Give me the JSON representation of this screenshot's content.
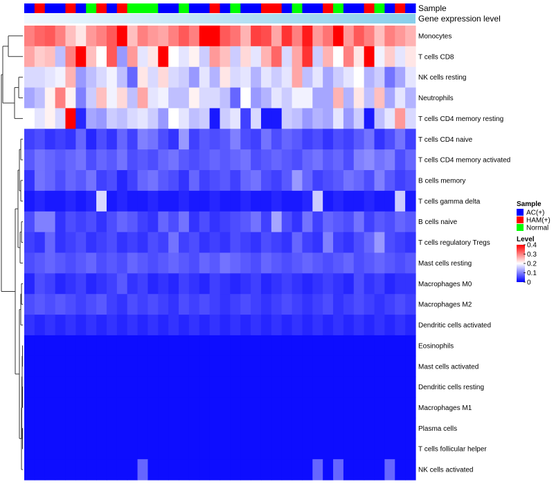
{
  "chart_data": {
    "type": "heatmap",
    "title": "",
    "annotation_rows": {
      "sample": "Sample",
      "gene_expression_level": "Gene expression level"
    },
    "legend": {
      "sample_title": "Sample",
      "sample_items": [
        {
          "label": "AC(+)",
          "color": "#0000ff"
        },
        {
          "label": "HAM(+)",
          "color": "#ff0000"
        },
        {
          "label": "Normal",
          "color": "#00ff00"
        }
      ],
      "level_title": "Level",
      "level_ticks": [
        "0.4",
        "0.3",
        "0.2",
        "0.1",
        "0"
      ],
      "level_range": [
        0,
        0.4
      ]
    },
    "sample_groups": [
      "AC(+)",
      "HAM(+)",
      "AC(+)",
      "AC(+)",
      "HAM(+)",
      "AC(+)",
      "Normal",
      "HAM(+)",
      "AC(+)",
      "HAM(+)",
      "Normal",
      "Normal",
      "Normal",
      "AC(+)",
      "AC(+)",
      "Normal",
      "AC(+)",
      "AC(+)",
      "HAM(+)",
      "AC(+)",
      "Normal",
      "AC(+)",
      "AC(+)",
      "HAM(+)",
      "HAM(+)",
      "AC(+)",
      "Normal",
      "AC(+)",
      "AC(+)",
      "HAM(+)",
      "Normal",
      "AC(+)",
      "AC(+)",
      "HAM(+)",
      "Normal",
      "AC(+)",
      "HAM(+)",
      "AC(+)"
    ],
    "colors": {
      "low": "#0000ff",
      "mid": "#ffffff",
      "high": "#ff0000",
      "gene_bar": "#87ceeb",
      "gene_bar_light": "#f0f8ff",
      "dendrogram": "#333333"
    },
    "rows": [
      {
        "name": "Monocytes",
        "values": [
          0.3,
          0.32,
          0.33,
          0.3,
          0.25,
          0.22,
          0.28,
          0.3,
          0.33,
          0.4,
          0.25,
          0.3,
          0.28,
          0.27,
          0.3,
          0.33,
          0.3,
          0.4,
          0.4,
          0.33,
          0.31,
          0.26,
          0.35,
          0.34,
          0.27,
          0.36,
          0.3,
          0.38,
          0.28,
          0.31,
          0.4,
          0.28,
          0.33,
          0.3,
          0.25,
          0.3,
          0.28,
          0.26
        ]
      },
      {
        "name": "T cells CD8",
        "values": [
          0.27,
          0.24,
          0.25,
          0.15,
          0.3,
          0.4,
          0.25,
          0.2,
          0.33,
          0.12,
          0.28,
          0.18,
          0.22,
          0.4,
          0.2,
          0.18,
          0.21,
          0.16,
          0.28,
          0.25,
          0.16,
          0.23,
          0.18,
          0.26,
          0.32,
          0.17,
          0.27,
          0.36,
          0.16,
          0.26,
          0.2,
          0.3,
          0.22,
          0.4,
          0.19,
          0.24,
          0.18,
          0.22
        ]
      },
      {
        "name": "NK cells resting",
        "values": [
          0.17,
          0.17,
          0.18,
          0.19,
          0.26,
          0.12,
          0.15,
          0.17,
          0.19,
          0.15,
          0.08,
          0.22,
          0.17,
          0.23,
          0.17,
          0.16,
          0.12,
          0.18,
          0.14,
          0.22,
          0.17,
          0.18,
          0.14,
          0.18,
          0.16,
          0.18,
          0.27,
          0.15,
          0.18,
          0.13,
          0.16,
          0.18,
          0.2,
          0.14,
          0.16,
          0.09,
          0.13,
          0.18
        ]
      },
      {
        "name": "Neutrophils",
        "values": [
          0.13,
          0.15,
          0.21,
          0.3,
          0.21,
          0.1,
          0.16,
          0.25,
          0.19,
          0.23,
          0.15,
          0.27,
          0.18,
          0.19,
          0.15,
          0.15,
          0.21,
          0.17,
          0.17,
          0.15,
          0.08,
          0.2,
          0.12,
          0.14,
          0.18,
          0.16,
          0.19,
          0.19,
          0.13,
          0.13,
          0.26,
          0.14,
          0.22,
          0.15,
          0.25,
          0.13,
          0.18,
          0.14
        ]
      },
      {
        "name": "T cells CD4 memory resting",
        "values": [
          0.2,
          0.18,
          0.21,
          0.17,
          0.4,
          0.03,
          0.13,
          0.12,
          0.16,
          0.15,
          0.17,
          0.18,
          0.16,
          0.12,
          0.2,
          0.18,
          0.15,
          0.16,
          0.02,
          0.16,
          0.18,
          0.05,
          0.17,
          0.02,
          0.02,
          0.16,
          0.15,
          0.12,
          0.14,
          0.13,
          0.18,
          0.12,
          0.16,
          0.02,
          0.15,
          0.18,
          0.28,
          0.17
        ]
      },
      {
        "name": "T cells CD4 naive",
        "values": [
          0.05,
          0.06,
          0.04,
          0.05,
          0.04,
          0.08,
          0.03,
          0.06,
          0.04,
          0.08,
          0.05,
          0.1,
          0.09,
          0.06,
          0.04,
          0.12,
          0.05,
          0.07,
          0.06,
          0.07,
          0.1,
          0.06,
          0.05,
          0.09,
          0.06,
          0.08,
          0.07,
          0.05,
          0.06,
          0.04,
          0.06,
          0.05,
          0.07,
          0.09,
          0.04,
          0.06,
          0.09,
          0.05
        ]
      },
      {
        "name": "T cells CD4 memory activated",
        "values": [
          0.07,
          0.09,
          0.08,
          0.07,
          0.08,
          0.09,
          0.06,
          0.08,
          0.07,
          0.09,
          0.06,
          0.07,
          0.06,
          0.08,
          0.09,
          0.07,
          0.06,
          0.07,
          0.08,
          0.07,
          0.08,
          0.09,
          0.06,
          0.07,
          0.08,
          0.07,
          0.06,
          0.08,
          0.09,
          0.07,
          0.08,
          0.06,
          0.1,
          0.11,
          0.09,
          0.1,
          0.06,
          0.08
        ]
      },
      {
        "name": "B cells memory",
        "values": [
          0.04,
          0.09,
          0.08,
          0.06,
          0.08,
          0.07,
          0.09,
          0.05,
          0.06,
          0.03,
          0.05,
          0.08,
          0.09,
          0.07,
          0.06,
          0.04,
          0.08,
          0.05,
          0.06,
          0.07,
          0.05,
          0.08,
          0.09,
          0.06,
          0.05,
          0.07,
          0.12,
          0.08,
          0.05,
          0.06,
          0.07,
          0.09,
          0.08,
          0.06,
          0.1,
          0.07,
          0.05,
          0.06
        ]
      },
      {
        "name": "T cells gamma delta",
        "values": [
          0.02,
          0.03,
          0.02,
          0.02,
          0.03,
          0.02,
          0.03,
          0.17,
          0.02,
          0.03,
          0.02,
          0.02,
          0.03,
          0.02,
          0.02,
          0.03,
          0.02,
          0.02,
          0.03,
          0.02,
          0.02,
          0.03,
          0.02,
          0.02,
          0.03,
          0.02,
          0.02,
          0.03,
          0.16,
          0.02,
          0.03,
          0.02,
          0.02,
          0.03,
          0.02,
          0.02,
          0.16,
          0.02
        ]
      },
      {
        "name": "B cells naive",
        "values": [
          0.06,
          0.1,
          0.1,
          0.04,
          0.06,
          0.05,
          0.06,
          0.04,
          0.06,
          0.08,
          0.07,
          0.05,
          0.04,
          0.08,
          0.06,
          0.09,
          0.04,
          0.06,
          0.04,
          0.05,
          0.06,
          0.07,
          0.09,
          0.05,
          0.13,
          0.06,
          0.04,
          0.09,
          0.05,
          0.08,
          0.07,
          0.06,
          0.09,
          0.05,
          0.07,
          0.06,
          0.08,
          0.07
        ]
      },
      {
        "name": "T cells regulatory  Tregs",
        "values": [
          0.05,
          0.04,
          0.08,
          0.04,
          0.05,
          0.06,
          0.04,
          0.05,
          0.06,
          0.04,
          0.05,
          0.04,
          0.06,
          0.05,
          0.09,
          0.05,
          0.06,
          0.04,
          0.05,
          0.04,
          0.06,
          0.05,
          0.04,
          0.06,
          0.05,
          0.04,
          0.08,
          0.05,
          0.04,
          0.1,
          0.05,
          0.04,
          0.06,
          0.08,
          0.12,
          0.06,
          0.05,
          0.04
        ]
      },
      {
        "name": "Mast cells resting",
        "values": [
          0.06,
          0.07,
          0.08,
          0.07,
          0.06,
          0.07,
          0.08,
          0.06,
          0.07,
          0.06,
          0.08,
          0.07,
          0.06,
          0.07,
          0.08,
          0.07,
          0.06,
          0.08,
          0.07,
          0.09,
          0.08,
          0.07,
          0.06,
          0.08,
          0.07,
          0.06,
          0.07,
          0.08,
          0.07,
          0.06,
          0.07,
          0.08,
          0.06,
          0.07,
          0.08,
          0.07,
          0.06,
          0.07
        ]
      },
      {
        "name": "Macrophages M0",
        "values": [
          0.03,
          0.06,
          0.05,
          0.03,
          0.04,
          0.05,
          0.03,
          0.04,
          0.05,
          0.07,
          0.04,
          0.05,
          0.03,
          0.04,
          0.03,
          0.05,
          0.04,
          0.03,
          0.05,
          0.04,
          0.03,
          0.04,
          0.05,
          0.03,
          0.04,
          0.05,
          0.04,
          0.03,
          0.04,
          0.05,
          0.04,
          0.03,
          0.06,
          0.04,
          0.05,
          0.03,
          0.04,
          0.04
        ]
      },
      {
        "name": "Macrophages M2",
        "values": [
          0.06,
          0.07,
          0.06,
          0.07,
          0.06,
          0.05,
          0.06,
          0.07,
          0.05,
          0.04,
          0.06,
          0.05,
          0.06,
          0.05,
          0.04,
          0.06,
          0.05,
          0.06,
          0.05,
          0.04,
          0.05,
          0.06,
          0.05,
          0.04,
          0.05,
          0.06,
          0.05,
          0.04,
          0.05,
          0.06,
          0.04,
          0.05,
          0.06,
          0.05,
          0.04,
          0.05,
          0.06,
          0.05
        ]
      },
      {
        "name": "Dendritic cells activated",
        "values": [
          0.04,
          0.03,
          0.04,
          0.03,
          0.04,
          0.03,
          0.04,
          0.03,
          0.04,
          0.03,
          0.04,
          0.03,
          0.04,
          0.03,
          0.04,
          0.03,
          0.04,
          0.03,
          0.04,
          0.03,
          0.04,
          0.03,
          0.04,
          0.03,
          0.04,
          0.03,
          0.04,
          0.03,
          0.04,
          0.03,
          0.04,
          0.03,
          0.04,
          0.03,
          0.04,
          0.03,
          0.04,
          0.03
        ]
      },
      {
        "name": "Eosinophils",
        "values": [
          0.01,
          0.01,
          0.01,
          0.01,
          0.01,
          0.01,
          0.01,
          0.01,
          0.01,
          0.01,
          0.01,
          0.01,
          0.01,
          0.01,
          0.01,
          0.01,
          0.01,
          0.01,
          0.01,
          0.01,
          0.01,
          0.01,
          0.01,
          0.01,
          0.01,
          0.01,
          0.01,
          0.01,
          0.01,
          0.01,
          0.01,
          0.01,
          0.01,
          0.01,
          0.01,
          0.01,
          0.01,
          0.01
        ]
      },
      {
        "name": "Mast cells activated",
        "values": [
          0.01,
          0.01,
          0.01,
          0.01,
          0.01,
          0.01,
          0.01,
          0.01,
          0.01,
          0.01,
          0.01,
          0.01,
          0.01,
          0.01,
          0.01,
          0.01,
          0.01,
          0.01,
          0.01,
          0.01,
          0.01,
          0.01,
          0.01,
          0.01,
          0.01,
          0.01,
          0.01,
          0.01,
          0.01,
          0.01,
          0.01,
          0.01,
          0.01,
          0.01,
          0.01,
          0.01,
          0.01,
          0.01
        ]
      },
      {
        "name": "Dendritic cells resting",
        "values": [
          0.01,
          0.01,
          0.01,
          0.01,
          0.01,
          0.01,
          0.01,
          0.01,
          0.01,
          0.01,
          0.01,
          0.01,
          0.01,
          0.01,
          0.01,
          0.01,
          0.01,
          0.01,
          0.01,
          0.01,
          0.01,
          0.01,
          0.01,
          0.01,
          0.01,
          0.01,
          0.01,
          0.01,
          0.01,
          0.01,
          0.01,
          0.01,
          0.01,
          0.01,
          0.01,
          0.01,
          0.01,
          0.01
        ]
      },
      {
        "name": "Macrophages M1",
        "values": [
          0.01,
          0.01,
          0.01,
          0.01,
          0.01,
          0.01,
          0.01,
          0.01,
          0.01,
          0.01,
          0.01,
          0.01,
          0.01,
          0.01,
          0.01,
          0.01,
          0.01,
          0.01,
          0.01,
          0.01,
          0.01,
          0.01,
          0.01,
          0.01,
          0.01,
          0.01,
          0.01,
          0.01,
          0.01,
          0.01,
          0.01,
          0.01,
          0.01,
          0.01,
          0.01,
          0.01,
          0.01,
          0.01
        ]
      },
      {
        "name": "Plasma cells",
        "values": [
          0.01,
          0.01,
          0.01,
          0.01,
          0.01,
          0.01,
          0.01,
          0.01,
          0.01,
          0.01,
          0.01,
          0.01,
          0.01,
          0.01,
          0.01,
          0.01,
          0.01,
          0.01,
          0.01,
          0.01,
          0.01,
          0.01,
          0.01,
          0.01,
          0.01,
          0.01,
          0.01,
          0.01,
          0.01,
          0.01,
          0.01,
          0.01,
          0.01,
          0.01,
          0.01,
          0.01,
          0.01,
          0.01
        ]
      },
      {
        "name": "T cells follicular helper",
        "values": [
          0.01,
          0.01,
          0.01,
          0.01,
          0.01,
          0.01,
          0.01,
          0.01,
          0.01,
          0.01,
          0.01,
          0.01,
          0.01,
          0.01,
          0.01,
          0.01,
          0.01,
          0.01,
          0.01,
          0.01,
          0.01,
          0.01,
          0.01,
          0.01,
          0.01,
          0.01,
          0.01,
          0.01,
          0.01,
          0.01,
          0.01,
          0.01,
          0.01,
          0.01,
          0.01,
          0.01,
          0.01,
          0.01
        ]
      },
      {
        "name": "NK cells activated",
        "values": [
          0.01,
          0.01,
          0.01,
          0.01,
          0.01,
          0.01,
          0.01,
          0.01,
          0.01,
          0.01,
          0.01,
          0.08,
          0.01,
          0.01,
          0.01,
          0.01,
          0.01,
          0.01,
          0.01,
          0.01,
          0.01,
          0.01,
          0.01,
          0.01,
          0.01,
          0.01,
          0.01,
          0.01,
          0.08,
          0.01,
          0.08,
          0.01,
          0.01,
          0.01,
          0.01,
          0.08,
          0.01,
          0.01
        ]
      }
    ]
  }
}
